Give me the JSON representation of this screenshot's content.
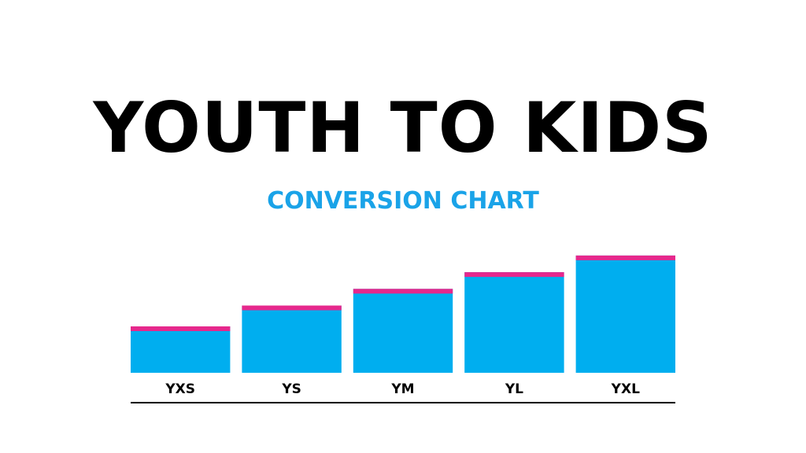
{
  "title": "YOUTH TO KIDS",
  "subtitle": "CONVERSION CHART",
  "colors": {
    "title": "#000000",
    "subtitle": "#1aa3e8",
    "bar": "#00aeef",
    "bar_cap": "#e6288c",
    "axis_line": "#000000",
    "label": "#000000"
  },
  "chart_data": {
    "type": "bar",
    "categories": [
      "YXS",
      "YS",
      "YM",
      "YL",
      "YXL"
    ],
    "values": [
      1,
      1.5,
      1.9,
      2.3,
      2.7
    ],
    "grid": false,
    "legend": "none"
  }
}
